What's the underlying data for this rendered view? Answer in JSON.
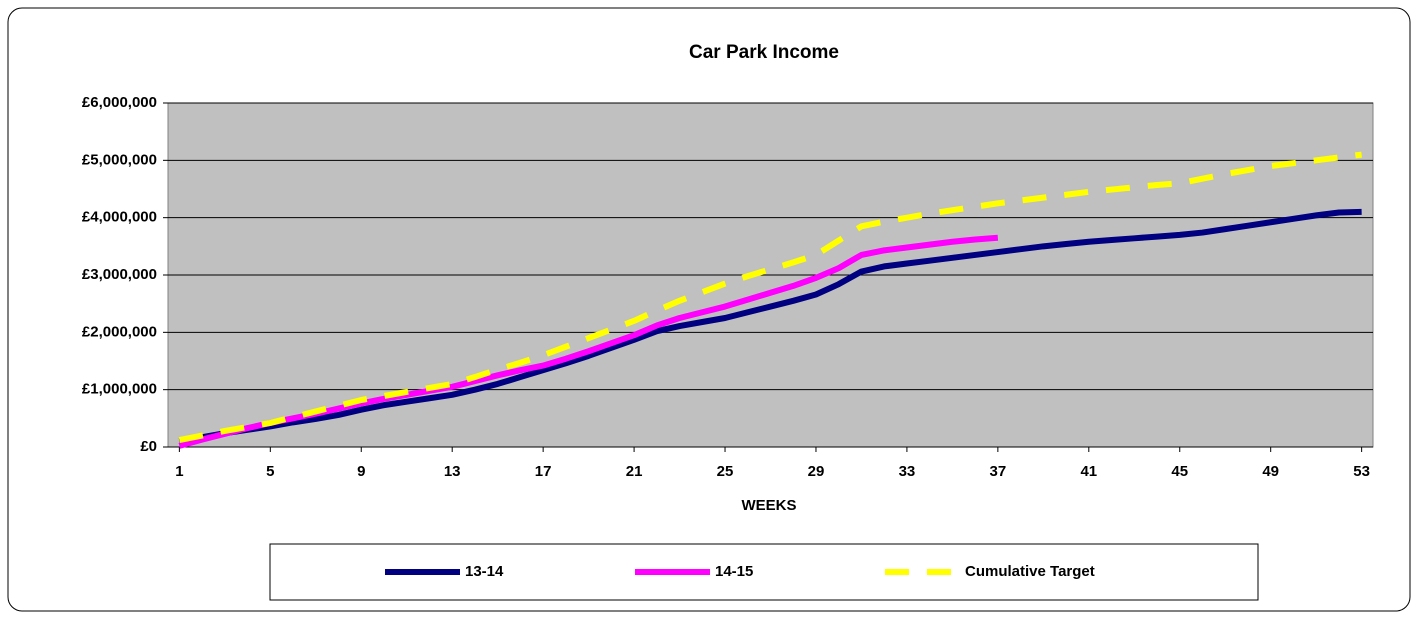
{
  "chart_data": {
    "type": "line",
    "title": "Car Park Income",
    "x_label": "WEEKS",
    "x": [
      1,
      2,
      3,
      4,
      5,
      6,
      7,
      8,
      9,
      10,
      11,
      12,
      13,
      14,
      15,
      16,
      17,
      18,
      19,
      20,
      21,
      22,
      23,
      24,
      25,
      26,
      27,
      28,
      29,
      30,
      31,
      32,
      33,
      34,
      35,
      36,
      37,
      38,
      39,
      40,
      41,
      42,
      43,
      44,
      45,
      46,
      47,
      48,
      49,
      50,
      51,
      52,
      53
    ],
    "xlim": [
      0.5,
      53.5
    ],
    "xticks": [
      1,
      5,
      9,
      13,
      17,
      21,
      25,
      29,
      33,
      37,
      41,
      45,
      49,
      53
    ],
    "ylim": [
      0,
      6000000
    ],
    "yticks": [
      {
        "value": 0,
        "label": "£0"
      },
      {
        "value": 1000000,
        "label": "£1,000,000"
      },
      {
        "value": 2000000,
        "label": "£2,000,000"
      },
      {
        "value": 3000000,
        "label": "£3,000,000"
      },
      {
        "value": 4000000,
        "label": "£4,000,000"
      },
      {
        "value": 5000000,
        "label": "£5,000,000"
      },
      {
        "value": 6000000,
        "label": "£6,000,000"
      }
    ],
    "grid": true,
    "legend": "bottom",
    "series": [
      {
        "name": "13-14",
        "color": "#000080",
        "dashed": false,
        "values": [
          100000,
          170000,
          240000,
          300000,
          360000,
          430000,
          490000,
          560000,
          650000,
          730000,
          790000,
          850000,
          910000,
          1000000,
          1100000,
          1220000,
          1340000,
          1460000,
          1590000,
          1730000,
          1870000,
          2020000,
          2110000,
          2180000,
          2250000,
          2350000,
          2450000,
          2550000,
          2660000,
          2840000,
          3060000,
          3150000,
          3200000,
          3250000,
          3300000,
          3350000,
          3400000,
          3450000,
          3500000,
          3540000,
          3580000,
          3610000,
          3640000,
          3670000,
          3700000,
          3740000,
          3800000,
          3860000,
          3920000,
          3980000,
          4040000,
          4090000,
          4100000
        ]
      },
      {
        "name": "14-15",
        "color": "#ff00ff",
        "dashed": false,
        "values": [
          20000,
          130000,
          230000,
          330000,
          420000,
          500000,
          580000,
          670000,
          760000,
          840000,
          910000,
          980000,
          1050000,
          1150000,
          1250000,
          1340000,
          1420000,
          1540000,
          1670000,
          1810000,
          1950000,
          2120000,
          2250000,
          2350000,
          2450000,
          2570000,
          2690000,
          2810000,
          2950000,
          3120000,
          3350000,
          3430000,
          3480000,
          3530000,
          3580000,
          3620000,
          3650000,
          null,
          null,
          null,
          null,
          null,
          null,
          null,
          null,
          null,
          null,
          null,
          null,
          null,
          null,
          null,
          null
        ]
      },
      {
        "name": "Cumulative Target",
        "color": "#ffff00",
        "dashed": true,
        "values": [
          120000,
          200000,
          280000,
          350000,
          420000,
          520000,
          620000,
          720000,
          820000,
          890000,
          960000,
          1030000,
          1100000,
          1220000,
          1350000,
          1470000,
          1600000,
          1750000,
          1900000,
          2050000,
          2200000,
          2380000,
          2550000,
          2700000,
          2850000,
          2980000,
          3100000,
          3220000,
          3350000,
          3600000,
          3850000,
          3930000,
          4000000,
          4070000,
          4130000,
          4190000,
          4250000,
          4300000,
          4350000,
          4400000,
          4450000,
          4490000,
          4530000,
          4570000,
          4600000,
          4680000,
          4760000,
          4830000,
          4900000,
          4950000,
          5000000,
          5050000,
          5100000
        ]
      }
    ]
  }
}
